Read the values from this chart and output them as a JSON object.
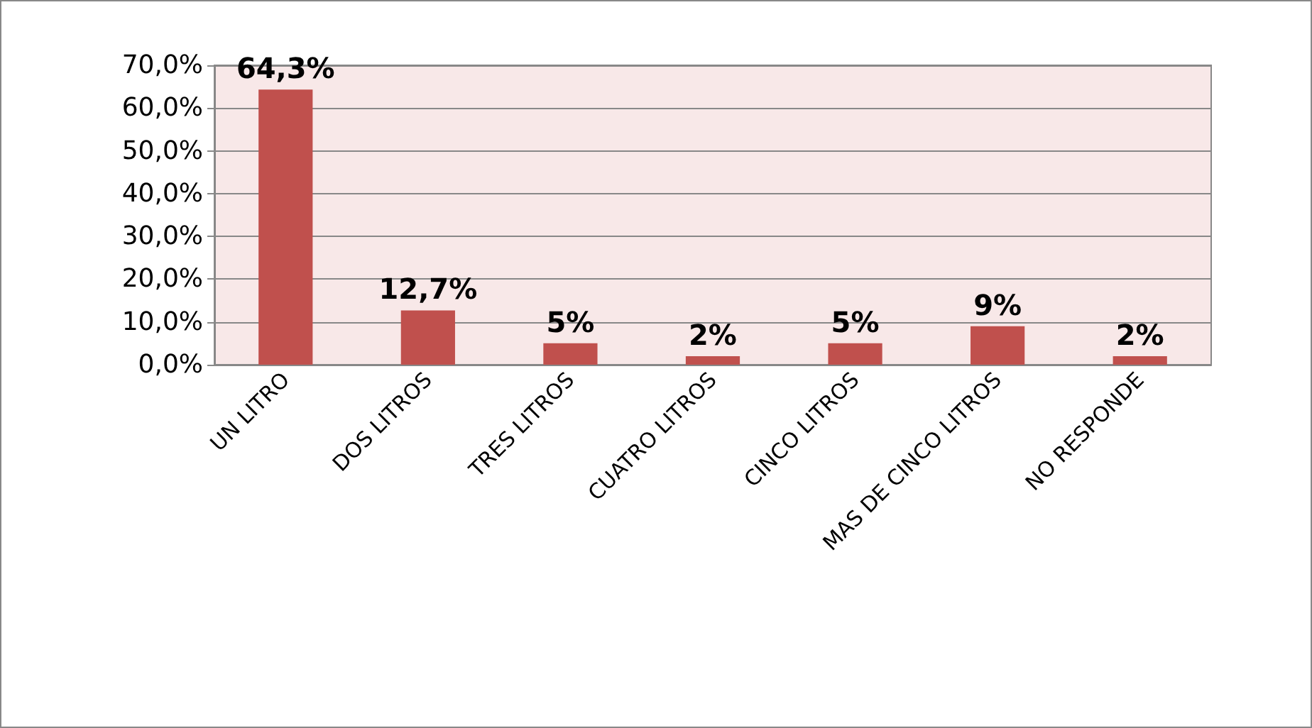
{
  "chart_data": {
    "type": "bar",
    "categories": [
      "UN LITRO",
      "DOS LITROS",
      "TRES LITROS",
      "CUATRO LITROS",
      "CINCO LITROS",
      "MAS DE CINCO LITROS",
      "NO RESPONDE"
    ],
    "values": [
      64.3,
      12.7,
      5,
      2,
      5,
      9,
      2
    ],
    "value_labels": [
      "64,3%",
      "12,7%",
      "5%",
      "2%",
      "5%",
      "9%",
      "2%"
    ],
    "color": "#c0504d",
    "ylim": [
      0,
      70
    ],
    "yticks": [
      {
        "value": 0,
        "label": "0,0%"
      },
      {
        "value": 10,
        "label": "10,0%"
      },
      {
        "value": 20,
        "label": "20,0%"
      },
      {
        "value": 30,
        "label": "30,0%"
      },
      {
        "value": 40,
        "label": "40,0%"
      },
      {
        "value": 50,
        "label": "50,0%"
      },
      {
        "value": 60,
        "label": "60,0%"
      },
      {
        "value": 70,
        "label": "70,0%"
      }
    ],
    "grid": "y"
  }
}
